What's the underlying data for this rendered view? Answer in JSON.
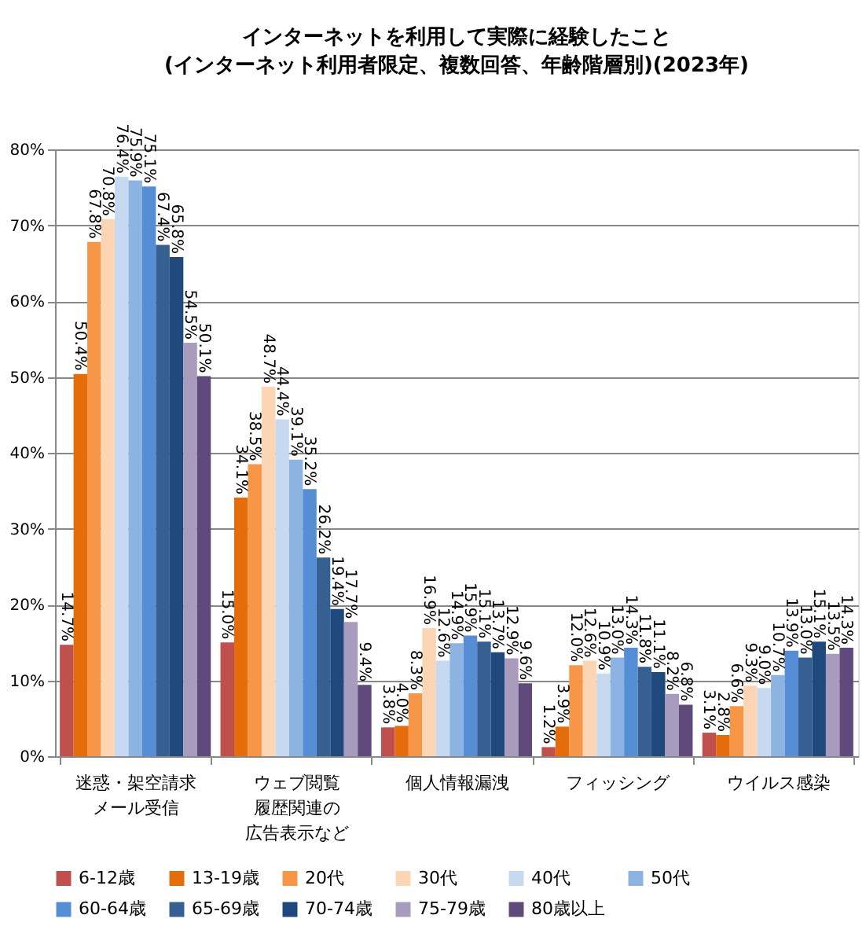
{
  "chart_data": {
    "type": "bar",
    "title": "インターネットを利用して実際に経験したこと\n(インターネット利用者限定、複数回答、年齢階層別)(2023年)",
    "categories": [
      "迷惑・架空請求メール受信",
      "ウェブ閲覧履歴関連の広告表示など",
      "個人情報漏洩",
      "フィッシング",
      "ウイルス感染"
    ],
    "series": [
      {
        "name": "6-12歳",
        "color": "#c0504d",
        "values": [
          14.7,
          15.0,
          3.8,
          1.2,
          3.1
        ],
        "value_labels": [
          "14.7%",
          "15.0%",
          "3.8%",
          "1.2%",
          "3.1%"
        ]
      },
      {
        "name": "13-19歳",
        "color": "#e46c0a",
        "values": [
          50.4,
          34.1,
          4.0,
          3.9,
          2.8
        ],
        "value_labels": [
          "50.4%",
          "34.1%",
          "4.0%",
          "3.9%",
          "2.8%"
        ]
      },
      {
        "name": "20代",
        "color": "#f79646",
        "values": [
          67.8,
          38.5,
          8.3,
          12.0,
          6.6
        ],
        "value_labels": [
          "67.8%",
          "38.5%",
          "8.3%",
          "12.0%",
          "6.6%"
        ]
      },
      {
        "name": "30代",
        "color": "#fcd5b5",
        "values": [
          70.8,
          48.7,
          16.9,
          12.6,
          9.3
        ],
        "value_labels": [
          "70.8%",
          "48.7%",
          "16.9%",
          "12.6%",
          "9.3%"
        ]
      },
      {
        "name": "40代",
        "color": "#c6d9f1",
        "values": [
          76.4,
          44.4,
          12.6,
          10.9,
          9.0
        ],
        "value_labels": [
          "76.4%",
          "44.4%",
          "12.6%",
          "10.9%",
          "9.0%"
        ]
      },
      {
        "name": "50代",
        "color": "#8db3e2",
        "values": [
          75.9,
          39.1,
          14.9,
          13.0,
          10.7
        ],
        "value_labels": [
          "75.9%",
          "39.1%",
          "14.9%",
          "13.0%",
          "10.7%"
        ]
      },
      {
        "name": "60-64歳",
        "color": "#558ed5",
        "values": [
          75.1,
          35.2,
          15.9,
          14.3,
          13.9
        ],
        "value_labels": [
          "75.1%",
          "35.2%",
          "15.9%",
          "14.3%",
          "13.9%"
        ]
      },
      {
        "name": "65-69歳",
        "color": "#376092",
        "values": [
          67.4,
          26.2,
          15.1,
          11.8,
          13.0
        ],
        "value_labels": [
          "67.4%",
          "26.2%",
          "15.1%",
          "11.8%",
          "13.0%"
        ]
      },
      {
        "name": "70-74歳",
        "color": "#1f497d",
        "values": [
          65.8,
          19.4,
          13.7,
          11.1,
          15.1
        ],
        "value_labels": [
          "65.8%",
          "19.4%",
          "13.7%",
          "11.1%",
          "15.1%"
        ]
      },
      {
        "name": "75-79歳",
        "color": "#a99bbd",
        "values": [
          54.5,
          17.7,
          12.9,
          8.2,
          13.5
        ],
        "value_labels": [
          "54.5%",
          "17.7%",
          "12.9%",
          "8.2%",
          "13.5%"
        ]
      },
      {
        "name": "80歳以上",
        "color": "#604a7b",
        "values": [
          50.1,
          9.4,
          9.6,
          6.8,
          14.3
        ],
        "value_labels": [
          "50.1%",
          "9.4%",
          "9.6%",
          "6.8%",
          "14.3%"
        ]
      }
    ],
    "ylim": [
      0,
      80
    ],
    "yticks": [
      {
        "value": 0,
        "label": "0%"
      },
      {
        "value": 10,
        "label": "10%"
      },
      {
        "value": 20,
        "label": "20%"
      },
      {
        "value": 30,
        "label": "30%"
      },
      {
        "value": 40,
        "label": "40%"
      },
      {
        "value": 50,
        "label": "50%"
      },
      {
        "value": 60,
        "label": "60%"
      },
      {
        "value": 70,
        "label": "70%"
      },
      {
        "value": 80,
        "label": "80%"
      }
    ],
    "grid": "y",
    "legend": "bottom"
  }
}
